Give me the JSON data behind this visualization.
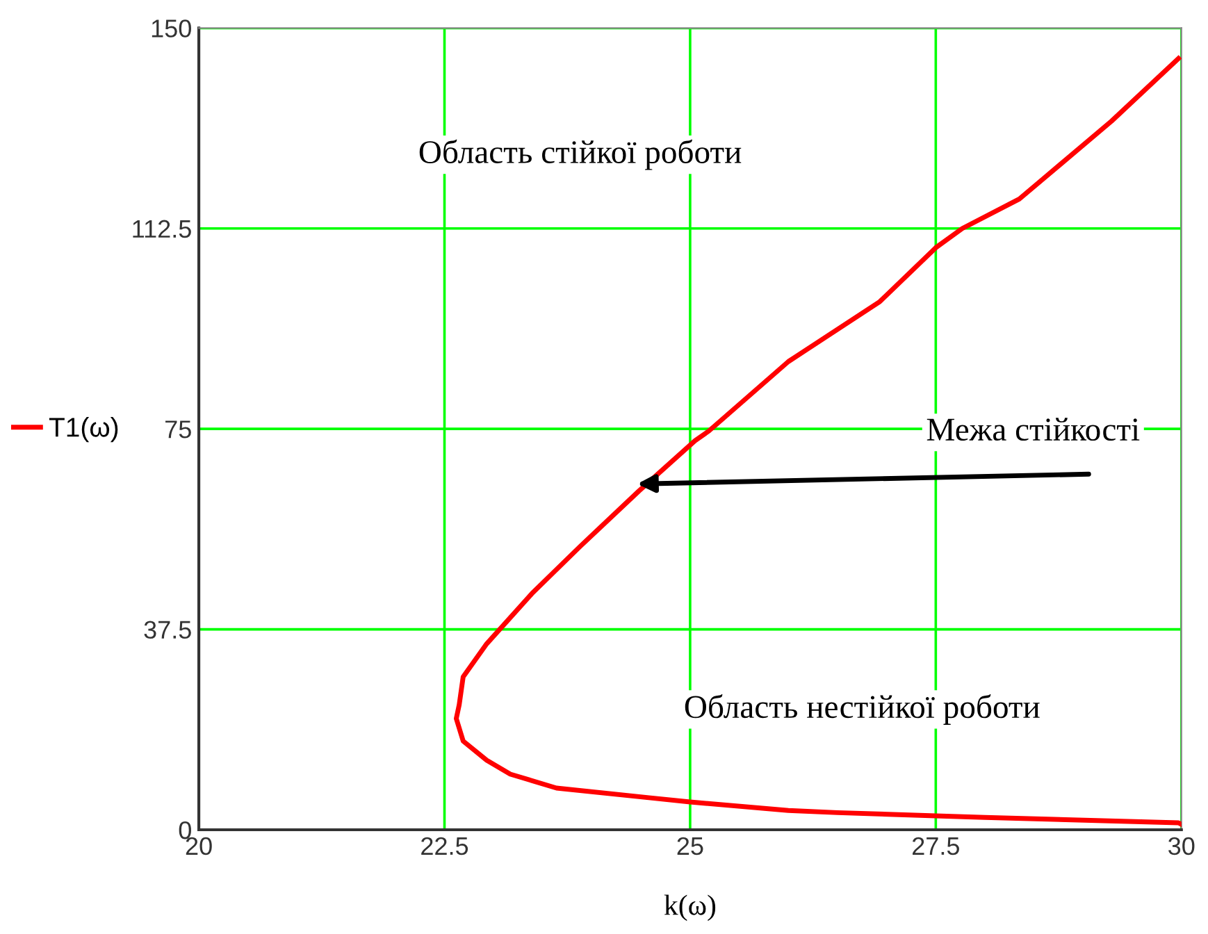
{
  "chart_data": {
    "type": "line",
    "xlabel": "k(ω)",
    "xlim": [
      20,
      30
    ],
    "xticks": [
      20,
      22.5,
      25,
      27.5,
      30
    ],
    "ylim": [
      0,
      150
    ],
    "yticks": [
      0,
      37.5,
      75,
      112.5,
      150
    ],
    "grid": true,
    "legend": "left",
    "marker": "none",
    "line_style": "solid",
    "series": [
      {
        "name": "T1(ω)",
        "color": "#ff0000",
        "x": [
          30.0,
          29.97,
          28.0,
          27.5,
          26.5,
          26.0,
          25.0,
          24.58,
          23.64,
          23.17,
          22.93,
          22.69,
          22.62,
          22.65,
          22.69,
          22.93,
          23.39,
          23.88,
          24.48,
          25.05,
          25.19,
          26.0,
          26.93,
          27.5,
          27.77,
          28.35,
          29.29,
          29.97
        ],
        "values": [
          1.0,
          1.3,
          2.3,
          2.6,
          3.2,
          3.6,
          5.2,
          6.0,
          7.8,
          10.4,
          13.0,
          16.6,
          20.8,
          23.4,
          28.6,
          34.8,
          44.2,
          53.0,
          63.4,
          72.8,
          74.6,
          87.6,
          98.8,
          108.9,
          112.5,
          118.0,
          132.6,
          144.3
        ]
      }
    ],
    "annotations": [
      "Область стійкої роботи",
      {
        "text": "Межа стійкості",
        "x": 24.46,
        "y": 64.7
      },
      "Область нестійкої роботи"
    ]
  }
}
